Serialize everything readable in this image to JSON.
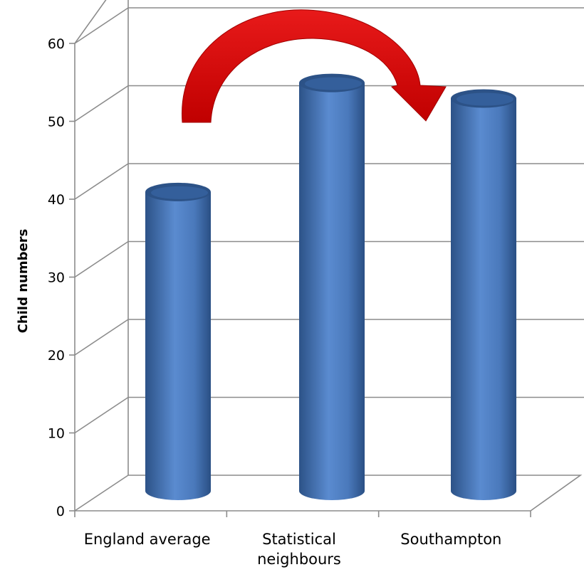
{
  "chart_data": {
    "type": "bar",
    "style": "3d-cylinder",
    "categories": [
      "England average",
      "Statistical neighbours",
      "Southampton"
    ],
    "category_lines": [
      [
        "England average"
      ],
      [
        "Statistical",
        "neighbours"
      ],
      [
        "Southampton"
      ]
    ],
    "values": [
      38,
      52,
      50
    ],
    "ylabel": "Child numbers",
    "xlabel": "",
    "ylim": [
      0,
      60
    ],
    "yticks": [
      0,
      10,
      20,
      30,
      40,
      50,
      60
    ],
    "grid": true,
    "legend": "none",
    "annotation": "curved-arrow",
    "colors": {
      "bar": "#4f81bd",
      "bar_dark": "#2c5287",
      "bar_light": "#7ba3d9",
      "arrow": "#e01010",
      "arrow_dark": "#a00000",
      "grid": "#8c8c8c"
    }
  }
}
